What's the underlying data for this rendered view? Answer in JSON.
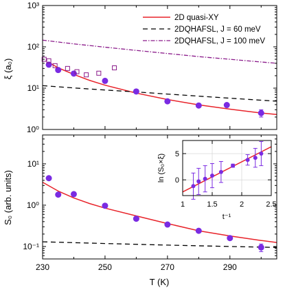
{
  "chart_data": [
    {
      "type": "scatter",
      "panel": "top",
      "xlabel": "",
      "ylabel": "ξ (a₀)",
      "yscale": "log",
      "xlim": [
        230,
        305
      ],
      "ylim": [
        1,
        1000
      ],
      "xticks": [
        230,
        250,
        270,
        290
      ],
      "yticks": [
        1,
        10,
        100,
        1000
      ],
      "ytick_labels": [
        "10⁰",
        "10¹",
        "10²",
        "10³"
      ],
      "legend_position": "top-right",
      "series": [
        {
          "name": "2D quasi-XY",
          "kind": "line",
          "color": "#e8232a",
          "x": [
            232,
            235,
            240,
            245,
            250,
            260,
            270,
            280,
            290,
            300,
            305
          ],
          "y": [
            42,
            31,
            21.5,
            15.5,
            11.8,
            7.6,
            5.3,
            3.95,
            3.1,
            2.5,
            2.3
          ]
        },
        {
          "name": "2DQHAFSL, J = 60 meV",
          "kind": "dashed",
          "color": "#000000",
          "x": [
            230,
            240,
            250,
            260,
            270,
            280,
            290,
            300,
            305
          ],
          "y": [
            11.5,
            10.1,
            9.0,
            8.1,
            7.2,
            6.4,
            5.7,
            5.1,
            4.85
          ]
        },
        {
          "name": "2DQHAFSL, J = 100 meV",
          "kind": "dashdot",
          "color": "#8a1a8a",
          "x": [
            230,
            240,
            250,
            260,
            270,
            280,
            290,
            300,
            305
          ],
          "y": [
            145,
            118,
            98,
            82,
            69,
            58,
            50,
            43,
            40
          ]
        },
        {
          "name": "",
          "kind": "filled",
          "color": "#7a2be2",
          "x": [
            232,
            235,
            240,
            250,
            260,
            270,
            280,
            289,
            300
          ],
          "y": [
            37,
            27.5,
            22.5,
            15,
            8.3,
            4.8,
            3.8,
            3.9,
            2.5
          ],
          "err": [
            0,
            0,
            0,
            0,
            0,
            0,
            0,
            0,
            0.5
          ]
        },
        {
          "name": "",
          "kind": "open-square",
          "color": "#8a1a8a",
          "x": [
            230.5,
            232,
            234,
            238,
            241,
            244,
            248,
            253
          ],
          "y": [
            50,
            46,
            35,
            30,
            25,
            21,
            23,
            31
          ]
        }
      ]
    },
    {
      "type": "scatter",
      "panel": "bottom",
      "xlabel": "T (K)",
      "ylabel": "S₀ (arb. units)",
      "yscale": "log",
      "xlim": [
        230,
        305
      ],
      "ylim": [
        0.05,
        50
      ],
      "xticks": [
        230,
        250,
        270,
        290
      ],
      "yticks": [
        0.1,
        1,
        10
      ],
      "ytick_labels": [
        "10⁻¹",
        "10⁰",
        "10¹"
      ],
      "series": [
        {
          "name": "",
          "kind": "line",
          "color": "#e8232a",
          "x": [
            230,
            235,
            240,
            245,
            250,
            260,
            270,
            280,
            290,
            300,
            305
          ],
          "y": [
            3.6,
            2.2,
            1.5,
            1.1,
            0.85,
            0.55,
            0.36,
            0.24,
            0.18,
            0.14,
            0.125
          ]
        },
        {
          "name": "",
          "kind": "dashed",
          "color": "#000000",
          "x": [
            230,
            250,
            270,
            290,
            305
          ],
          "y": [
            0.13,
            0.118,
            0.108,
            0.1,
            0.095
          ]
        },
        {
          "name": "",
          "kind": "filled",
          "color": "#7a2be2",
          "x": [
            232,
            235,
            240,
            250,
            260,
            270,
            280,
            290,
            300
          ],
          "y": [
            4.5,
            1.8,
            1.85,
            0.97,
            0.47,
            0.34,
            0.24,
            0.16,
            0.095
          ],
          "err": [
            0,
            0,
            0,
            0,
            0,
            0,
            0,
            0,
            0.02
          ]
        }
      ]
    },
    {
      "type": "scatter",
      "panel": "inset",
      "xlabel": "t⁻¹",
      "ylabel": "ln (S₀×ξ)",
      "xlim": [
        1,
        2.5
      ],
      "ylim": [
        -3,
        7.5
      ],
      "xticks": [
        1,
        1.5,
        2,
        2.5
      ],
      "xtick_labels": [
        "1",
        "1.5",
        "2",
        "2.5"
      ],
      "yticks": [
        0,
        5
      ],
      "grid": true,
      "series": [
        {
          "name": "",
          "kind": "line",
          "color": "#e8232a",
          "x": [
            1.0,
            2.5
          ],
          "y": [
            -2.3,
            6.3
          ]
        },
        {
          "name": "",
          "kind": "filled",
          "color": "#7a2be2",
          "x": [
            1.18,
            1.27,
            1.38,
            1.5,
            1.65,
            1.85,
            2.1,
            2.23,
            2.33
          ],
          "y": [
            -1.2,
            -0.3,
            0.2,
            0.8,
            1.5,
            2.7,
            3.8,
            4.2,
            5.0
          ],
          "err": [
            2.5,
            2.5,
            2.5,
            2.3,
            2.0,
            0.3,
            1.0,
            1.8,
            2.3
          ]
        }
      ]
    }
  ]
}
